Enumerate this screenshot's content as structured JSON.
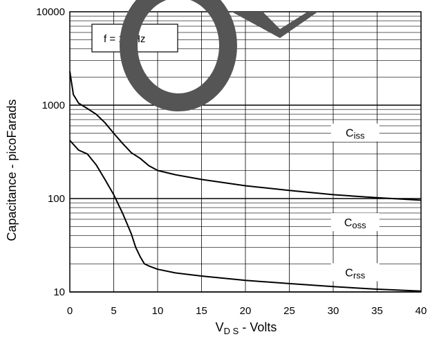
{
  "chart_data": {
    "type": "line",
    "xlabel": {
      "main": "V",
      "sub": "D S",
      "rest": " - Volts"
    },
    "ylabel": "Capacitance - picoFarads",
    "x_scale": "linear",
    "y_scale": "log",
    "xlim": [
      0,
      40
    ],
    "ylim": [
      10,
      10000
    ],
    "x_ticks": [
      0,
      5,
      10,
      15,
      20,
      25,
      30,
      35,
      40
    ],
    "y_ticks": [
      10,
      100,
      1000,
      10000
    ],
    "grid": true,
    "annotation": "f  = 1MHz",
    "series": [
      {
        "name": "Ciss",
        "label_main": "C",
        "label_sub": "iss",
        "x": [
          0,
          0.4,
          1,
          2,
          3,
          4,
          5,
          6,
          7,
          8,
          9,
          10,
          12,
          15,
          20,
          25,
          30,
          35,
          40
        ],
        "y": [
          2300,
          1300,
          1050,
          920,
          800,
          650,
          500,
          390,
          310,
          270,
          225,
          200,
          180,
          160,
          137,
          122,
          110,
          102,
          96
        ]
      },
      {
        "name": "Coss",
        "label_main": "C",
        "label_sub": "oss",
        "x": [
          0,
          1,
          2,
          3,
          4,
          5,
          6,
          7,
          7.5,
          8,
          8.5,
          9,
          10,
          12,
          15,
          20,
          25,
          30,
          35,
          40
        ],
        "y": [
          420,
          330,
          300,
          230,
          160,
          110,
          70,
          42,
          30,
          24,
          20,
          19,
          17.5,
          16,
          14.8,
          13.3,
          12.3,
          11.4,
          10.7,
          10.2
        ]
      },
      {
        "name": "Crss",
        "label_main": "C",
        "label_sub": "rss",
        "x": [],
        "y": []
      }
    ],
    "series_label_positions": [
      {
        "x": 32.5,
        "y": 500
      },
      {
        "x": 32.5,
        "y": 55
      },
      {
        "x": 32.5,
        "y": 16
      }
    ]
  }
}
